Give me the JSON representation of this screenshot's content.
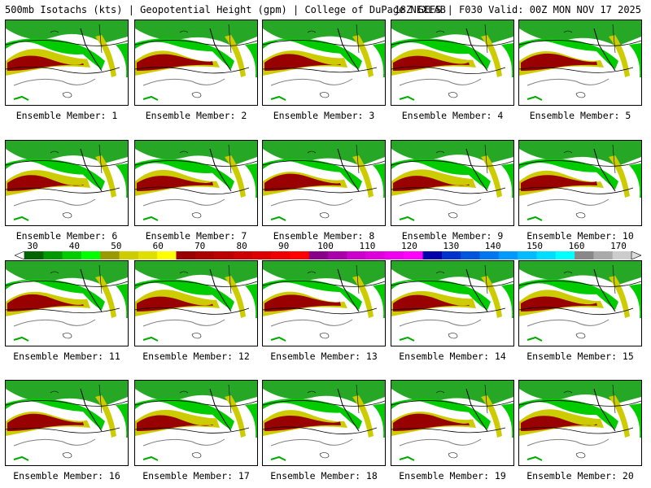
{
  "header": {
    "left": "500mb Isotachs (kts) | Geopotential Height (gpm) | College of DuPage NEXLAB",
    "right": "18Z GEFS | F030 Valid: 00Z MON NOV 17 2025"
  },
  "members": [
    "Ensemble Member: 1",
    "Ensemble Member: 2",
    "Ensemble Member: 3",
    "Ensemble Member: 4",
    "Ensemble Member: 5",
    "Ensemble Member: 6",
    "Ensemble Member: 7",
    "Ensemble Member: 8",
    "Ensemble Member: 9",
    "Ensemble Member: 10",
    "Ensemble Member: 11",
    "Ensemble Member: 12",
    "Ensemble Member: 13",
    "Ensemble Member: 14",
    "Ensemble Member: 15",
    "Ensemble Member: 16",
    "Ensemble Member: 17",
    "Ensemble Member: 18",
    "Ensemble Member: 19",
    "Ensemble Member: 20"
  ],
  "colorbar": {
    "labels": [
      "30",
      "40",
      "50",
      "60",
      "70",
      "80",
      "90",
      "100",
      "110",
      "120",
      "130",
      "140",
      "150",
      "160",
      "170"
    ],
    "colors": [
      "#006400",
      "#009900",
      "#00cc00",
      "#00ff00",
      "#999900",
      "#cccc00",
      "#e0e000",
      "#ffff00",
      "#990000",
      "#aa0000",
      "#bb0000",
      "#cc0000",
      "#dd0000",
      "#ee0000",
      "#ff0000",
      "#880088",
      "#aa00aa",
      "#cc00cc",
      "#dd00dd",
      "#ee00ee",
      "#ff00ff",
      "#0000aa",
      "#0033cc",
      "#0055dd",
      "#0077ee",
      "#0099ff",
      "#00bbff",
      "#00ddff",
      "#00ffff",
      "#888888",
      "#aaaaaa",
      "#cccccc"
    ]
  }
}
